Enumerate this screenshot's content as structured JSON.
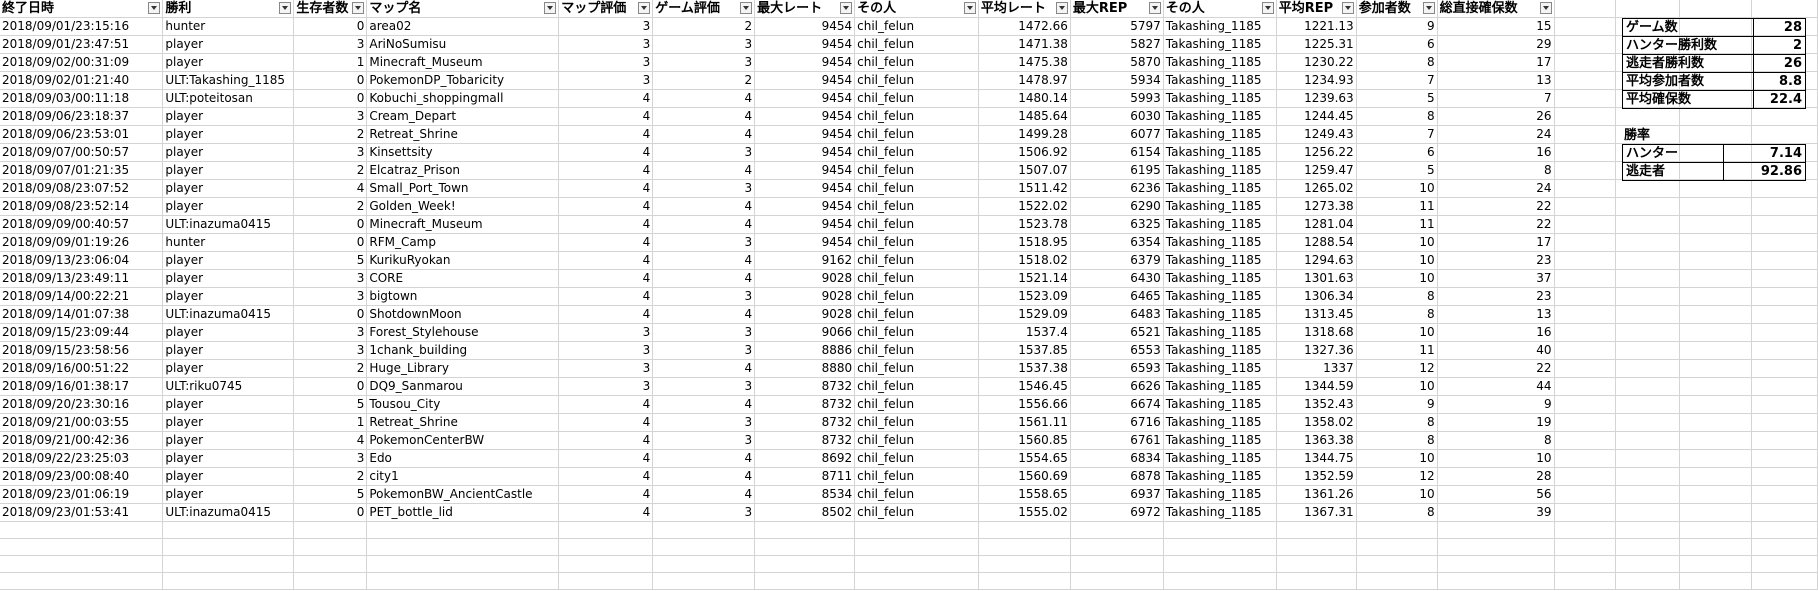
{
  "headers": [
    "終了日時",
    "勝利",
    "生存者数",
    "マップ名",
    "マップ評価",
    "ゲーム評価",
    "最大レート",
    "その人",
    "平均レート",
    "最大REP",
    "その人",
    "平均REP",
    "参加者数",
    "総直接確保数"
  ],
  "rows": [
    [
      "2018/09/01/23:15:16",
      "hunter",
      "0",
      "area02",
      "3",
      "2",
      "9454",
      "chil_felun",
      "1472.66",
      "5797",
      "Takashing_1185",
      "1221.13",
      "9",
      "15"
    ],
    [
      "2018/09/01/23:47:51",
      "player",
      "3",
      "AriNoSumisu",
      "3",
      "3",
      "9454",
      "chil_felun",
      "1471.38",
      "5827",
      "Takashing_1185",
      "1225.31",
      "6",
      "29"
    ],
    [
      "2018/09/02/00:31:09",
      "player",
      "1",
      "Minecraft_Museum",
      "3",
      "3",
      "9454",
      "chil_felun",
      "1475.38",
      "5870",
      "Takashing_1185",
      "1230.22",
      "8",
      "17"
    ],
    [
      "2018/09/02/01:21:40",
      "ULT:Takashing_1185",
      "0",
      "PokemonDP_Tobaricity",
      "3",
      "2",
      "9454",
      "chil_felun",
      "1478.97",
      "5934",
      "Takashing_1185",
      "1234.93",
      "7",
      "13"
    ],
    [
      "2018/09/03/00:11:18",
      "ULT:poteitosan",
      "0",
      "Kobuchi_shoppingmall",
      "4",
      "4",
      "9454",
      "chil_felun",
      "1480.14",
      "5993",
      "Takashing_1185",
      "1239.63",
      "5",
      "7"
    ],
    [
      "2018/09/06/23:18:37",
      "player",
      "3",
      "Cream_Depart",
      "4",
      "4",
      "9454",
      "chil_felun",
      "1485.64",
      "6030",
      "Takashing_1185",
      "1244.45",
      "8",
      "26"
    ],
    [
      "2018/09/06/23:53:01",
      "player",
      "2",
      "Retreat_Shrine",
      "4",
      "4",
      "9454",
      "chil_felun",
      "1499.28",
      "6077",
      "Takashing_1185",
      "1249.43",
      "7",
      "24"
    ],
    [
      "2018/09/07/00:50:57",
      "player",
      "3",
      "Kinsettsity",
      "4",
      "3",
      "9454",
      "chil_felun",
      "1506.92",
      "6154",
      "Takashing_1185",
      "1256.22",
      "6",
      "16"
    ],
    [
      "2018/09/07/01:21:35",
      "player",
      "2",
      "Elcatraz_Prison",
      "4",
      "4",
      "9454",
      "chil_felun",
      "1507.07",
      "6195",
      "Takashing_1185",
      "1259.47",
      "5",
      "8"
    ],
    [
      "2018/09/08/23:07:52",
      "player",
      "4",
      "Small_Port_Town",
      "4",
      "3",
      "9454",
      "chil_felun",
      "1511.42",
      "6236",
      "Takashing_1185",
      "1265.02",
      "10",
      "24"
    ],
    [
      "2018/09/08/23:52:14",
      "player",
      "2",
      "Golden_Week!",
      "4",
      "4",
      "9454",
      "chil_felun",
      "1522.02",
      "6290",
      "Takashing_1185",
      "1273.38",
      "11",
      "22"
    ],
    [
      "2018/09/09/00:40:57",
      "ULT:inazuma0415",
      "0",
      "Minecraft_Museum",
      "4",
      "4",
      "9454",
      "chil_felun",
      "1523.78",
      "6325",
      "Takashing_1185",
      "1281.04",
      "11",
      "22"
    ],
    [
      "2018/09/09/01:19:26",
      "hunter",
      "0",
      "RFM_Camp",
      "4",
      "3",
      "9454",
      "chil_felun",
      "1518.95",
      "6354",
      "Takashing_1185",
      "1288.54",
      "10",
      "17"
    ],
    [
      "2018/09/13/23:06:04",
      "player",
      "5",
      "KurikuRyokan",
      "4",
      "4",
      "9162",
      "chil_felun",
      "1518.02",
      "6379",
      "Takashing_1185",
      "1294.63",
      "10",
      "23"
    ],
    [
      "2018/09/13/23:49:11",
      "player",
      "3",
      "CORE",
      "4",
      "4",
      "9028",
      "chil_felun",
      "1521.14",
      "6430",
      "Takashing_1185",
      "1301.63",
      "10",
      "37"
    ],
    [
      "2018/09/14/00:22:21",
      "player",
      "3",
      "bigtown",
      "4",
      "3",
      "9028",
      "chil_felun",
      "1523.09",
      "6465",
      "Takashing_1185",
      "1306.34",
      "8",
      "23"
    ],
    [
      "2018/09/14/01:07:38",
      "ULT:inazuma0415",
      "0",
      "ShotdownMoon",
      "4",
      "4",
      "9028",
      "chil_felun",
      "1529.09",
      "6483",
      "Takashing_1185",
      "1313.45",
      "8",
      "13"
    ],
    [
      "2018/09/15/23:09:44",
      "player",
      "3",
      "Forest_Stylehouse",
      "3",
      "3",
      "9066",
      "chil_felun",
      "1537.4",
      "6521",
      "Takashing_1185",
      "1318.68",
      "10",
      "16"
    ],
    [
      "2018/09/15/23:58:56",
      "player",
      "3",
      "1chank_building",
      "3",
      "3",
      "8886",
      "chil_felun",
      "1537.85",
      "6553",
      "Takashing_1185",
      "1327.36",
      "11",
      "40"
    ],
    [
      "2018/09/16/00:51:22",
      "player",
      "2",
      "Huge_Library",
      "3",
      "4",
      "8880",
      "chil_felun",
      "1537.38",
      "6593",
      "Takashing_1185",
      "1337",
      "12",
      "22"
    ],
    [
      "2018/09/16/01:38:17",
      "ULT:riku0745",
      "0",
      "DQ9_Sanmarou",
      "3",
      "3",
      "8732",
      "chil_felun",
      "1546.45",
      "6626",
      "Takashing_1185",
      "1344.59",
      "10",
      "44"
    ],
    [
      "2018/09/20/23:30:16",
      "player",
      "5",
      "Tousou_City",
      "4",
      "4",
      "8732",
      "chil_felun",
      "1556.66",
      "6674",
      "Takashing_1185",
      "1352.43",
      "9",
      "9"
    ],
    [
      "2018/09/21/00:03:55",
      "player",
      "1",
      "Retreat_Shrine",
      "4",
      "3",
      "8732",
      "chil_felun",
      "1561.11",
      "6716",
      "Takashing_1185",
      "1358.02",
      "8",
      "19"
    ],
    [
      "2018/09/21/00:42:36",
      "player",
      "4",
      "PokemonCenterBW",
      "4",
      "3",
      "8732",
      "chil_felun",
      "1560.85",
      "6761",
      "Takashing_1185",
      "1363.38",
      "8",
      "8"
    ],
    [
      "2018/09/22/23:25:03",
      "player",
      "3",
      "Edo",
      "4",
      "4",
      "8692",
      "chil_felun",
      "1554.65",
      "6834",
      "Takashing_1185",
      "1344.75",
      "10",
      "10"
    ],
    [
      "2018/09/23/00:08:40",
      "player",
      "2",
      "city1",
      "4",
      "4",
      "8711",
      "chil_felun",
      "1560.69",
      "6878",
      "Takashing_1185",
      "1352.59",
      "12",
      "28"
    ],
    [
      "2018/09/23/01:06:19",
      "player",
      "5",
      "PokemonBW_AncientCastle",
      "4",
      "4",
      "8534",
      "chil_felun",
      "1558.65",
      "6937",
      "Takashing_1185",
      "1361.26",
      "10",
      "56"
    ],
    [
      "2018/09/23/01:53:41",
      "ULT:inazuma0415",
      "0",
      "PET_bottle_lid",
      "4",
      "3",
      "8502",
      "chil_felun",
      "1555.02",
      "6972",
      "Takashing_1185",
      "1367.31",
      "8",
      "39"
    ]
  ],
  "summary": {
    "game_count_label": "ゲーム数",
    "game_count": "28",
    "hunter_wins_label": "ハンター勝利数",
    "hunter_wins": "2",
    "escaper_wins_label": "逃走者勝利数",
    "escaper_wins": "26",
    "avg_participants_label": "平均参加者数",
    "avg_participants": "8.8",
    "avg_secured_label": "平均確保数",
    "avg_secured": "22.4"
  },
  "win_rate": {
    "title": "勝率",
    "hunter_label": "ハンター",
    "hunter": "7.14",
    "escaper_label": "逃走者",
    "escaper": "92.86"
  }
}
